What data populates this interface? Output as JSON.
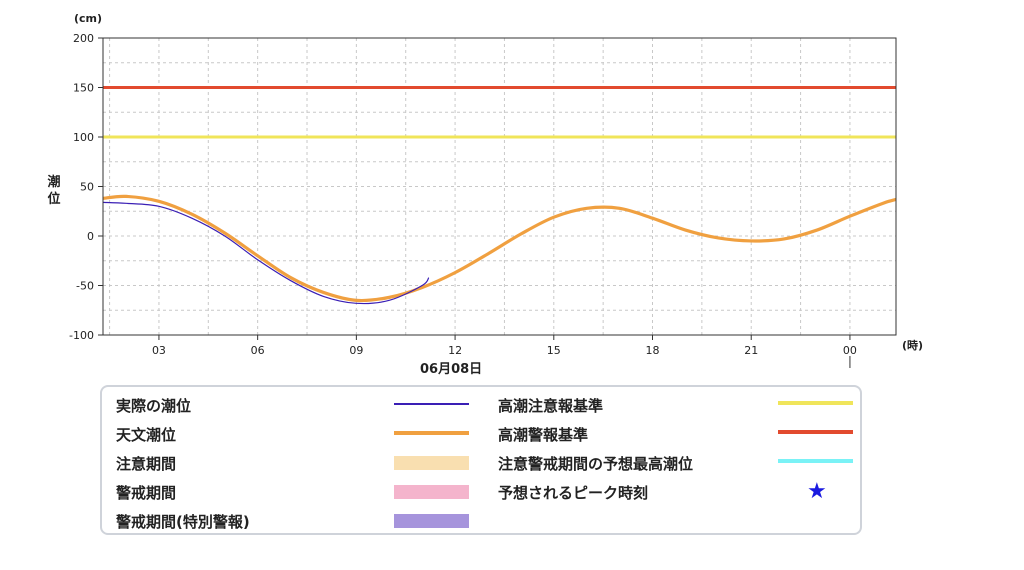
{
  "chart_data": {
    "type": "line",
    "x_unit": "時",
    "y_unit": "(cm)",
    "ylabel": "潮位",
    "date_label": "06月08日",
    "x_ticks": [
      "03",
      "06",
      "09",
      "12",
      "15",
      "18",
      "21",
      "00"
    ],
    "x_tick_hours": [
      3,
      6,
      9,
      12,
      15,
      18,
      21,
      24
    ],
    "xlim": [
      1.3,
      25.4
    ],
    "ylim": [
      -100,
      200
    ],
    "y_ticks": [
      -100,
      -50,
      0,
      50,
      100,
      150,
      200
    ],
    "grid": true,
    "reference_lines": [
      {
        "name": "高潮注意報基準",
        "value": 100,
        "color": "#f0e55a"
      },
      {
        "name": "高潮警報基準",
        "value": 150,
        "color": "#e24a2e"
      }
    ],
    "series": [
      {
        "name": "天文潮位",
        "color": "#f0a040",
        "x": [
          1.3,
          2,
          3,
          4,
          5,
          6,
          7,
          8,
          9,
          10,
          11,
          12,
          13,
          14,
          15,
          16,
          17,
          18,
          19,
          20,
          21,
          22,
          23,
          24,
          25,
          25.4
        ],
        "values": [
          38,
          40,
          35,
          22,
          3,
          -20,
          -42,
          -57,
          -65,
          -62,
          -52,
          -37,
          -18,
          2,
          19,
          28,
          28,
          18,
          6,
          -2,
          -5,
          -3,
          6,
          20,
          33,
          37
        ]
      },
      {
        "name": "実際の潮位",
        "color": "#3a1fb5",
        "x": [
          1.3,
          2,
          3,
          4,
          5,
          6,
          7,
          8,
          9,
          10,
          11,
          11.2
        ],
        "values": [
          34,
          33,
          30,
          18,
          0,
          -24,
          -45,
          -61,
          -68,
          -65,
          -50,
          -42
        ]
      }
    ]
  },
  "legend": {
    "actual": "実際の潮位",
    "astro": "天文潮位",
    "caution_period": "注意期間",
    "warning_period": "警戒期間",
    "special_period": "警戒期間(特別警報)",
    "advisory_std": "高潮注意報基準",
    "warning_std": "高潮警報基準",
    "max_forecast": "注意警戒期間の予想最高潮位",
    "peak_time": "予想されるピーク時刻",
    "star": "★"
  },
  "colors": {
    "actual": "#3a1fb5",
    "astro": "#f0a040",
    "caution_period": "#f9dfb0",
    "warning_period": "#f4b4cc",
    "special_period": "#a694dc",
    "advisory_std": "#f0e55a",
    "warning_std": "#e24a2e",
    "max_forecast": "#7af2f6",
    "peak_star": "#1a1ae0"
  }
}
